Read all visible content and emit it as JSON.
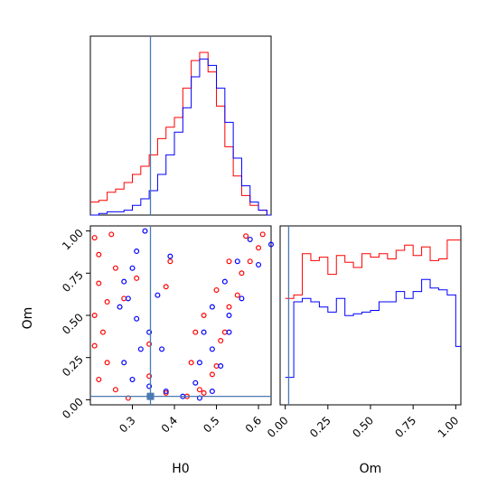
{
  "chart_data": [
    {
      "panel": "H0 marginal",
      "type": "line",
      "xlabel": "",
      "xlim": [
        0.2,
        0.63
      ],
      "truth_line": 0.343,
      "series": [
        {
          "color": "#ff0000",
          "x": [
            0.2,
            0.22,
            0.24,
            0.26,
            0.28,
            0.3,
            0.32,
            0.34,
            0.36,
            0.38,
            0.4,
            0.42,
            0.44,
            0.46,
            0.48,
            0.5,
            0.52,
            0.54,
            0.56,
            0.58,
            0.6,
            0.62
          ],
          "values": [
            0.08,
            0.09,
            0.14,
            0.16,
            0.2,
            0.25,
            0.3,
            0.37,
            0.47,
            0.54,
            0.6,
            0.78,
            0.95,
            1.0,
            0.88,
            0.67,
            0.42,
            0.24,
            0.12,
            0.06,
            0.03,
            0.0
          ]
        },
        {
          "color": "#0000ff",
          "x": [
            0.2,
            0.22,
            0.24,
            0.26,
            0.28,
            0.3,
            0.32,
            0.34,
            0.36,
            0.38,
            0.4,
            0.42,
            0.44,
            0.46,
            0.48,
            0.5,
            0.52,
            0.54,
            0.56,
            0.58,
            0.6,
            0.62
          ],
          "values": [
            0.0,
            0.01,
            0.02,
            0.02,
            0.03,
            0.06,
            0.1,
            0.15,
            0.25,
            0.37,
            0.51,
            0.66,
            0.85,
            0.96,
            0.92,
            0.78,
            0.57,
            0.35,
            0.18,
            0.08,
            0.03,
            0.0
          ]
        }
      ]
    },
    {
      "panel": "H0 vs Om joint",
      "type": "scatter",
      "xlabel": "H0",
      "ylabel": "Om",
      "xlim": [
        0.2,
        0.63
      ],
      "ylim": [
        -0.03,
        1.03
      ],
      "xticks": [
        "0.3",
        "0.4",
        "0.5",
        "0.6"
      ],
      "xtick_values": [
        0.3,
        0.4,
        0.5,
        0.6
      ],
      "yticks": [
        "0.00",
        "0.25",
        "0.50",
        "0.75",
        "1.00"
      ],
      "ytick_values": [
        0.0,
        0.25,
        0.5,
        0.75,
        1.0
      ],
      "truth_point": [
        0.343,
        0.02
      ],
      "series": [
        {
          "color": "#ff0000",
          "points": [
            [
              0.21,
              0.96
            ],
            [
              0.25,
              0.98
            ],
            [
              0.22,
              0.86
            ],
            [
              0.26,
              0.78
            ],
            [
              0.22,
              0.69
            ],
            [
              0.24,
              0.58
            ],
            [
              0.21,
              0.5
            ],
            [
              0.23,
              0.4
            ],
            [
              0.21,
              0.32
            ],
            [
              0.24,
              0.22
            ],
            [
              0.22,
              0.12
            ],
            [
              0.26,
              0.06
            ],
            [
              0.29,
              0.01
            ],
            [
              0.34,
              0.02
            ],
            [
              0.38,
              0.04
            ],
            [
              0.43,
              0.02
            ],
            [
              0.47,
              0.04
            ],
            [
              0.5,
              0.2
            ],
            [
              0.52,
              0.4
            ],
            [
              0.55,
              0.62
            ],
            [
              0.58,
              0.82
            ],
            [
              0.61,
              0.98
            ],
            [
              0.57,
              0.97
            ],
            [
              0.53,
              0.82
            ],
            [
              0.5,
              0.65
            ],
            [
              0.47,
              0.5
            ],
            [
              0.45,
              0.4
            ],
            [
              0.44,
              0.22
            ],
            [
              0.46,
              0.06
            ],
            [
              0.49,
              0.15
            ],
            [
              0.51,
              0.35
            ],
            [
              0.53,
              0.55
            ],
            [
              0.56,
              0.75
            ],
            [
              0.6,
              0.9
            ],
            [
              0.34,
              0.14
            ],
            [
              0.34,
              0.33
            ],
            [
              0.38,
              0.67
            ],
            [
              0.39,
              0.82
            ],
            [
              0.31,
              0.72
            ],
            [
              0.28,
              0.6
            ]
          ]
        },
        {
          "color": "#0000ff",
          "points": [
            [
              0.33,
              1.0
            ],
            [
              0.31,
              0.88
            ],
            [
              0.3,
              0.78
            ],
            [
              0.28,
              0.7
            ],
            [
              0.29,
              0.6
            ],
            [
              0.27,
              0.55
            ],
            [
              0.31,
              0.48
            ],
            [
              0.34,
              0.4
            ],
            [
              0.32,
              0.3
            ],
            [
              0.28,
              0.22
            ],
            [
              0.3,
              0.12
            ],
            [
              0.34,
              0.08
            ],
            [
              0.38,
              0.05
            ],
            [
              0.42,
              0.02
            ],
            [
              0.46,
              0.01
            ],
            [
              0.49,
              0.05
            ],
            [
              0.51,
              0.2
            ],
            [
              0.53,
              0.4
            ],
            [
              0.56,
              0.6
            ],
            [
              0.6,
              0.8
            ],
            [
              0.63,
              0.92
            ],
            [
              0.58,
              0.95
            ],
            [
              0.55,
              0.82
            ],
            [
              0.52,
              0.7
            ],
            [
              0.49,
              0.55
            ],
            [
              0.47,
              0.4
            ],
            [
              0.46,
              0.22
            ],
            [
              0.45,
              0.1
            ],
            [
              0.49,
              0.3
            ],
            [
              0.53,
              0.5
            ],
            [
              0.36,
              0.62
            ],
            [
              0.37,
              0.3
            ],
            [
              0.39,
              0.85
            ]
          ]
        }
      ]
    },
    {
      "panel": "Om marginal",
      "type": "line",
      "xlabel": "Om",
      "xlim": [
        -0.03,
        1.03
      ],
      "xticks": [
        "0.00",
        "0.25",
        "0.50",
        "0.75",
        "1.00"
      ],
      "xtick_values": [
        0.0,
        0.25,
        0.5,
        0.75,
        1.0
      ],
      "truth_line": 0.02,
      "series": [
        {
          "color": "#ff0000",
          "x": [
            0.0,
            0.05,
            0.1,
            0.15,
            0.2,
            0.25,
            0.3,
            0.35,
            0.4,
            0.45,
            0.5,
            0.55,
            0.6,
            0.65,
            0.7,
            0.75,
            0.8,
            0.85,
            0.9,
            0.95,
            1.0
          ],
          "values": [
            0.62,
            0.64,
            0.88,
            0.84,
            0.86,
            0.76,
            0.87,
            0.83,
            0.8,
            0.88,
            0.86,
            0.88,
            0.85,
            0.9,
            0.93,
            0.87,
            0.92,
            0.84,
            0.85,
            0.96,
            0.96
          ]
        },
        {
          "color": "#0000ff",
          "x": [
            0.0,
            0.05,
            0.1,
            0.15,
            0.2,
            0.25,
            0.3,
            0.35,
            0.4,
            0.45,
            0.5,
            0.55,
            0.6,
            0.65,
            0.7,
            0.75,
            0.8,
            0.85,
            0.9,
            0.95,
            1.0
          ],
          "values": [
            0.16,
            0.6,
            0.62,
            0.6,
            0.57,
            0.54,
            0.62,
            0.52,
            0.53,
            0.54,
            0.55,
            0.6,
            0.6,
            0.66,
            0.62,
            0.66,
            0.73,
            0.68,
            0.67,
            0.64,
            0.34
          ]
        }
      ]
    }
  ],
  "colors": {
    "series_a": "#ff0000",
    "series_b": "#0000ff",
    "truth": "#4a7ab3"
  }
}
